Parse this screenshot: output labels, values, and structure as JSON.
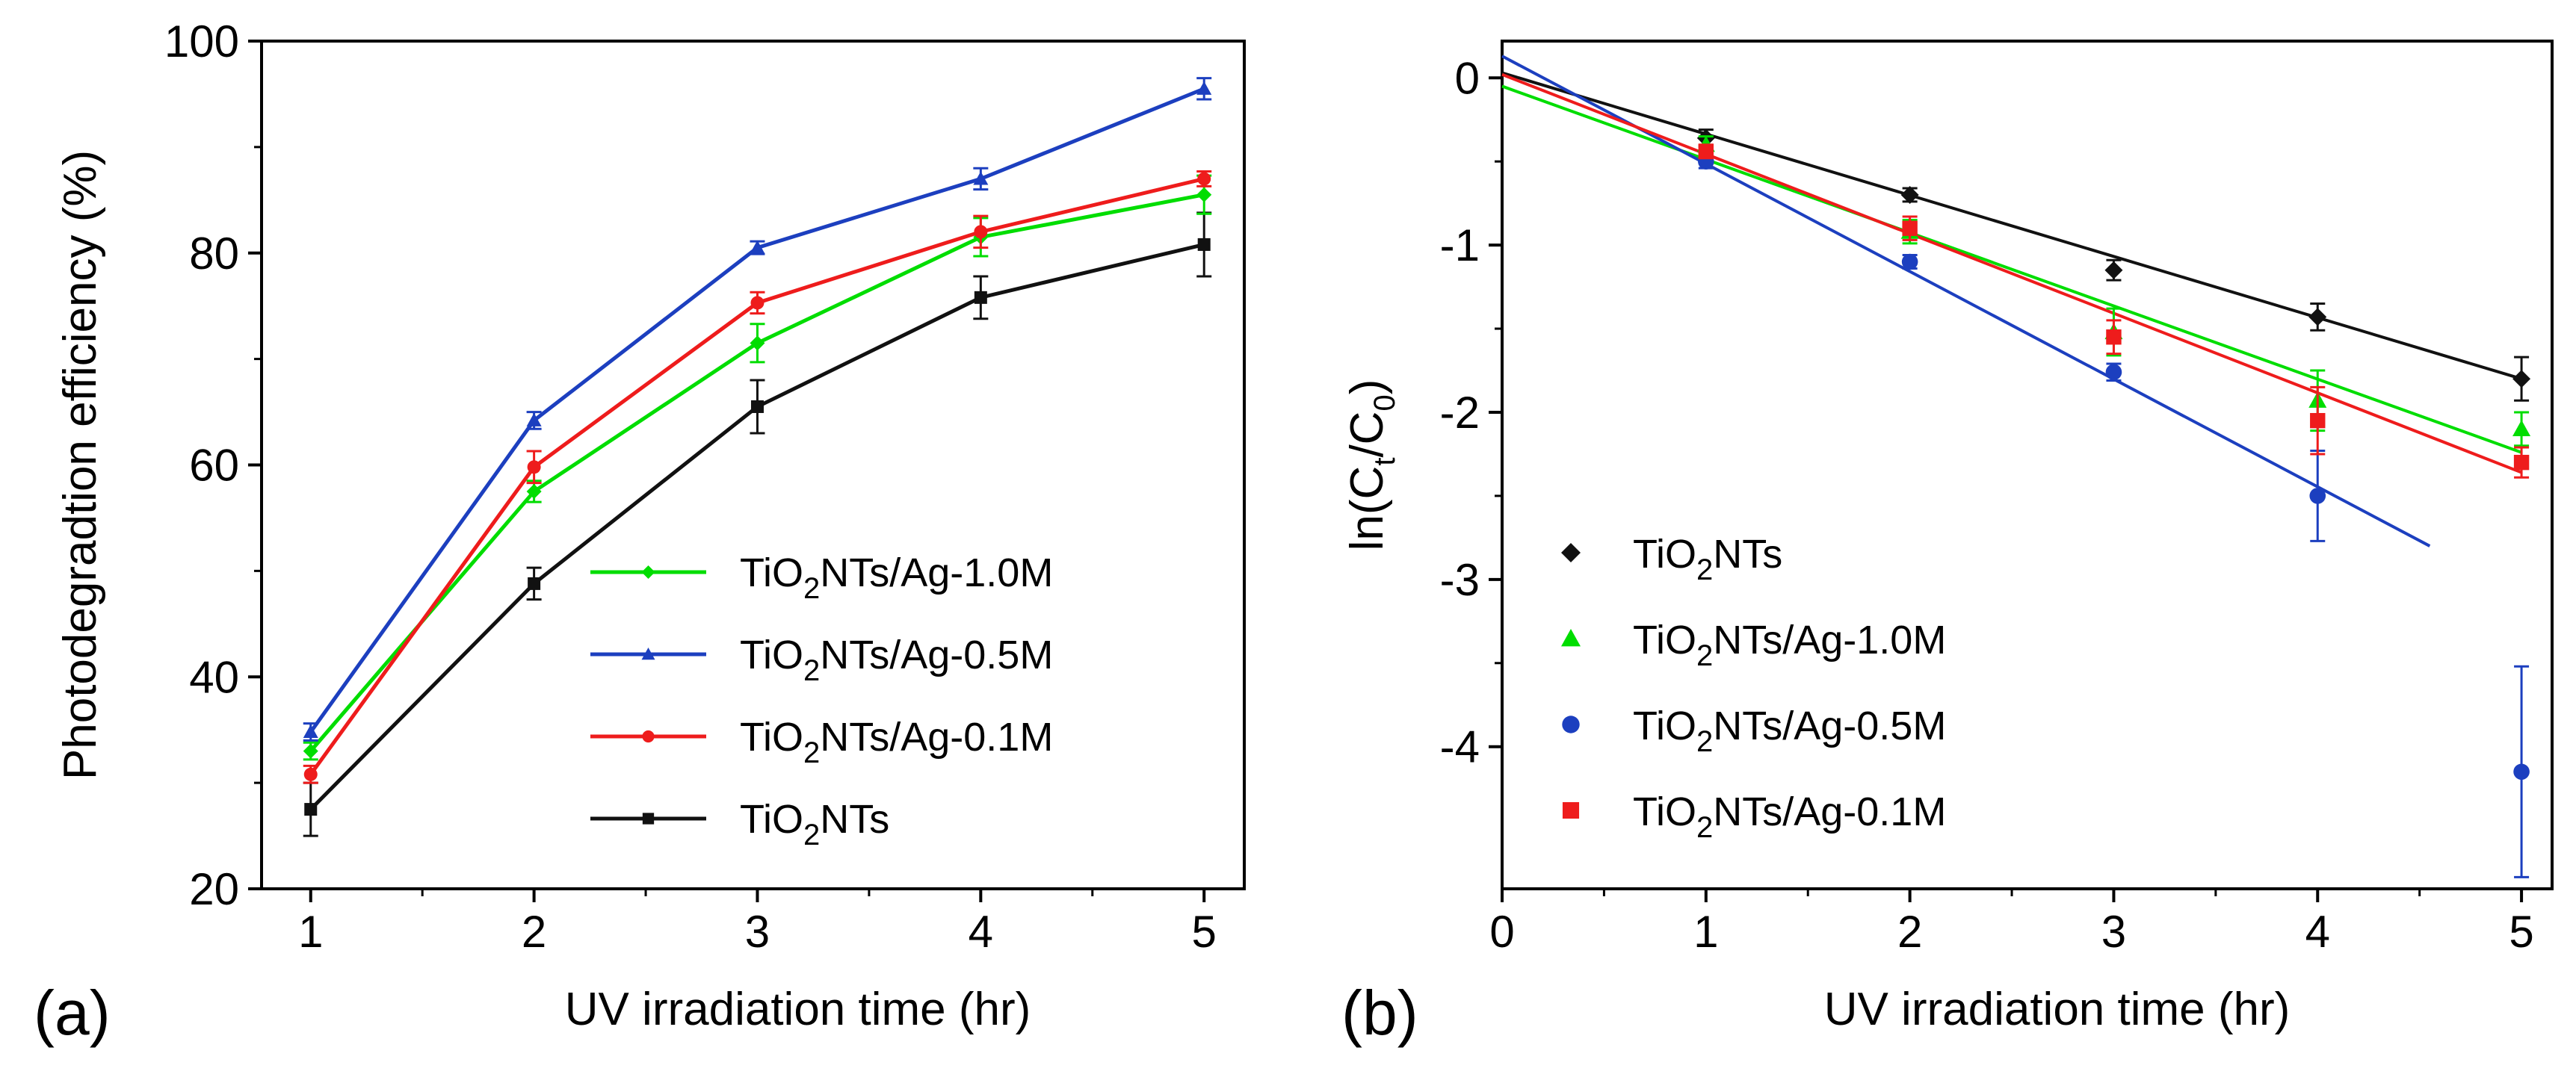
{
  "chart_data": [
    {
      "type": "line",
      "panel_label": "(a)",
      "xlabel": "UV irradiation time (hr)",
      "ylabel": "Photodegradtion efficiency (%)",
      "xlim": [
        0.78,
        5.18
      ],
      "ylim": [
        20,
        100
      ],
      "xticks": [
        "1",
        "2",
        "3",
        "4",
        "5"
      ],
      "yticks": [
        "20",
        "40",
        "60",
        "80",
        "100"
      ],
      "x": [
        1,
        2,
        3,
        4,
        5
      ],
      "legend_position": "lower-right",
      "series": [
        {
          "name": "TiO2NTs/Ag-1.0M",
          "legend": {
            "pre": "TiO",
            "sub": "2",
            "post": "NTs/Ag-1.0M"
          },
          "color": "#00dd00",
          "marker": "diamond",
          "values": [
            33,
            57.5,
            71.5,
            81.5,
            85.5
          ],
          "errors": [
            0.8,
            1.0,
            1.8,
            1.8,
            1.8
          ]
        },
        {
          "name": "TiO2NTs/Ag-0.5M",
          "legend": {
            "pre": "TiO",
            "sub": "2",
            "post": "NTs/Ag-0.5M"
          },
          "color": "#1c3fbf",
          "marker": "triangle",
          "values": [
            34.8,
            64.2,
            80.5,
            87,
            95.5
          ],
          "errors": [
            0.8,
            0.8,
            0.6,
            1.0,
            1.0
          ]
        },
        {
          "name": "TiO2NTs/Ag-0.1M",
          "legend": {
            "pre": "TiO",
            "sub": "2",
            "post": "NTs/Ag-0.1M"
          },
          "color": "#ee1c1c",
          "marker": "circle",
          "values": [
            30.8,
            59.8,
            75.3,
            82,
            87
          ],
          "errors": [
            0.8,
            1.5,
            1.0,
            1.5,
            0.7
          ]
        },
        {
          "name": "TiO2NTs",
          "legend": {
            "pre": "TiO",
            "sub": "2",
            "post": "NTs"
          },
          "color": "#111111",
          "marker": "square",
          "values": [
            27.5,
            48.8,
            65.5,
            75.8,
            80.8
          ],
          "errors": [
            2.5,
            1.5,
            2.5,
            2.0,
            3.0
          ]
        }
      ]
    },
    {
      "type": "scatter",
      "panel_label": "(b)",
      "xlabel": "UV irradiation time (hr)",
      "ylabel": {
        "pre": "ln(C",
        "sub1": "t",
        "mid": "/C",
        "sub2": "0",
        "post": ")"
      },
      "xlim": [
        0,
        5.15
      ],
      "ylim": [
        -4.85,
        0.22
      ],
      "xticks": [
        "0",
        "1",
        "2",
        "3",
        "4",
        "5"
      ],
      "yticks": [
        "0",
        "-1",
        "-2",
        "-3",
        "-4"
      ],
      "x": [
        1,
        2,
        3,
        4,
        5
      ],
      "legend_position": "lower-left",
      "series": [
        {
          "name": "TiO2NTs",
          "legend": {
            "pre": "TiO",
            "sub": "2",
            "post": "NTs"
          },
          "color": "#111111",
          "marker": "diamond",
          "values": [
            -0.36,
            -0.7,
            -1.15,
            -1.43,
            -1.8
          ],
          "errors": [
            0.05,
            0.04,
            0.06,
            0.08,
            0.13
          ],
          "fit": {
            "x0": 0,
            "y0": 0.03,
            "x1": 5,
            "y1": -1.8
          }
        },
        {
          "name": "TiO2NTs/Ag-1.0M",
          "legend": {
            "pre": "TiO",
            "sub": "2",
            "post": "NTs/Ag-1.0M"
          },
          "color": "#00dd00",
          "marker": "triangle",
          "values": [
            -0.4,
            -0.92,
            -1.52,
            -1.93,
            -2.1
          ],
          "errors": [
            0.05,
            0.07,
            0.14,
            0.18,
            0.1
          ],
          "fit": {
            "x0": 0,
            "y0": -0.05,
            "x1": 5,
            "y1": -2.24
          }
        },
        {
          "name": "TiO2NTs/Ag-0.5M",
          "legend": {
            "pre": "TiO",
            "sub": "2",
            "post": "NTs/Ag-0.5M"
          },
          "color": "#1c3fbf",
          "marker": "circle",
          "values": [
            -0.5,
            -1.1,
            -1.76,
            -2.5,
            -4.15
          ],
          "errors": [
            0.04,
            0.04,
            0.05,
            0.27,
            0.63
          ],
          "fit": {
            "x0": 0,
            "y0": 0.13,
            "x1": 4.55,
            "y1": -2.8
          }
        },
        {
          "name": "TiO2NTs/Ag-0.1M",
          "legend": {
            "pre": "TiO",
            "sub": "2",
            "post": "NTs/Ag-0.1M"
          },
          "color": "#ee1c1c",
          "marker": "square",
          "values": [
            -0.44,
            -0.9,
            -1.55,
            -2.05,
            -2.3
          ],
          "errors": [
            0.04,
            0.07,
            0.1,
            0.2,
            0.09
          ],
          "fit": {
            "x0": 0,
            "y0": 0.02,
            "x1": 5,
            "y1": -2.36
          }
        }
      ]
    }
  ]
}
